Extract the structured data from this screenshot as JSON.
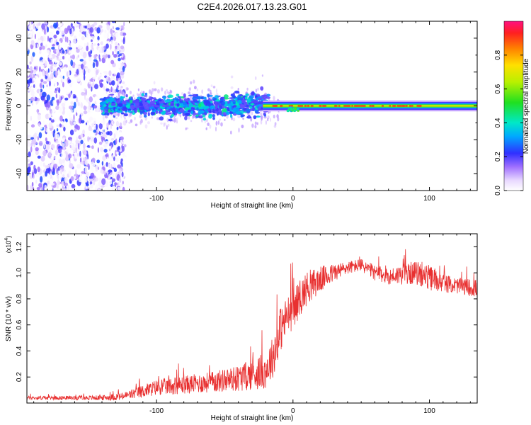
{
  "title": "C2E4.2026.017.13.23.G01",
  "chart_data": [
    {
      "type": "heatmap",
      "xlabel": "Height of straight line (km)",
      "ylabel": "Frequency (Hz)",
      "xlim": [
        -195,
        135
      ],
      "ylim": [
        -50,
        50
      ],
      "xticks": [
        -100,
        0,
        100
      ],
      "yticks": [
        -40,
        -20,
        0,
        20,
        40
      ],
      "description_regions": [
        {
          "x_range": [
            -195,
            -125
          ],
          "pattern": "diffuse broadband noise",
          "freq_range": [
            -50,
            50
          ]
        },
        {
          "x_range": [
            -140,
            -20
          ],
          "pattern": "scattered signal band",
          "freq_range": [
            -8,
            8
          ]
        },
        {
          "x_range": [
            -20,
            135
          ],
          "pattern": "narrow strong carrier line",
          "freq_range": [
            -3,
            3
          ],
          "center_freq": 0
        }
      ],
      "colorbar": {
        "label": "Normalized spectral amplitude",
        "range": [
          0.0,
          1.0
        ],
        "ticks": [
          0.0,
          0.2,
          0.4,
          0.6,
          0.8
        ]
      }
    },
    {
      "type": "line",
      "xlabel": "Height of straight line (km)",
      "ylabel": "SNR (10 * v/v)",
      "y_multiplier": "(x10",
      "y_multiplier_exp": "4",
      "y_multiplier_close": ")",
      "xlim": [
        -195,
        135
      ],
      "ylim": [
        0,
        1.3
      ],
      "xticks": [
        -100,
        0,
        100
      ],
      "yticks": [
        0.2,
        0.4,
        0.6,
        0.8,
        1.0,
        1.2
      ],
      "color": "#e83030",
      "series_envelope": {
        "x": [
          -195,
          -160,
          -140,
          -125,
          -110,
          -100,
          -80,
          -60,
          -40,
          -30,
          -20,
          -15,
          -12,
          -10,
          -5,
          0,
          5,
          10,
          20,
          30,
          40,
          50,
          60,
          70,
          80,
          90,
          100,
          110,
          120,
          135
        ],
        "mean": [
          0.04,
          0.04,
          0.04,
          0.05,
          0.09,
          0.12,
          0.14,
          0.16,
          0.19,
          0.22,
          0.25,
          0.35,
          0.45,
          0.55,
          0.65,
          0.72,
          0.8,
          0.88,
          0.95,
          1.0,
          1.04,
          1.06,
          1.0,
          0.97,
          0.99,
          1.0,
          0.96,
          0.92,
          0.9,
          0.88
        ],
        "spread": [
          0.015,
          0.015,
          0.02,
          0.03,
          0.05,
          0.06,
          0.07,
          0.08,
          0.1,
          0.12,
          0.14,
          0.16,
          0.18,
          0.18,
          0.16,
          0.15,
          0.14,
          0.13,
          0.1,
          0.07,
          0.05,
          0.05,
          0.06,
          0.06,
          0.08,
          0.09,
          0.1,
          0.07,
          0.06,
          0.07
        ]
      }
    }
  ]
}
